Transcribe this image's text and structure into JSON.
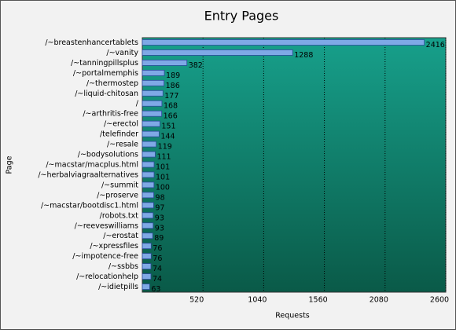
{
  "chart_data": {
    "type": "hbar",
    "title": "Entry Pages",
    "y_label": "Page",
    "x_label": "Requests",
    "categories": [
      "/~breastenhancertablets",
      "/~vanity",
      "/~tanningpillsplus",
      "/~portalmemphis",
      "/~thermostep",
      "/~liquid-chitosan",
      "/",
      "/~arthritis-free",
      "/~erectol",
      "/telefinder",
      "/~resale",
      "/~bodysolutions",
      "/~macstar/macplus.html",
      "/~herbalviagraalternatives",
      "/~summit",
      "/~proserve",
      "/~macstar/bootdisc1.html",
      "/robots.txt",
      "/~reeveswilliams",
      "/~erostat",
      "/~xpressfiles",
      "/~impotence-free",
      "/~ssbbs",
      "/~relocationhelp",
      "/~idietpills"
    ],
    "values": [
      2416,
      1288,
      382,
      189,
      186,
      177,
      168,
      166,
      151,
      144,
      119,
      111,
      101,
      101,
      100,
      98,
      97,
      93,
      93,
      89,
      76,
      76,
      74,
      74,
      63
    ],
    "color": "#7fa9e6",
    "xlim": [
      0,
      2600
    ],
    "xticks": [
      520,
      1040,
      1560,
      2080,
      2600
    ],
    "grid": true
  }
}
